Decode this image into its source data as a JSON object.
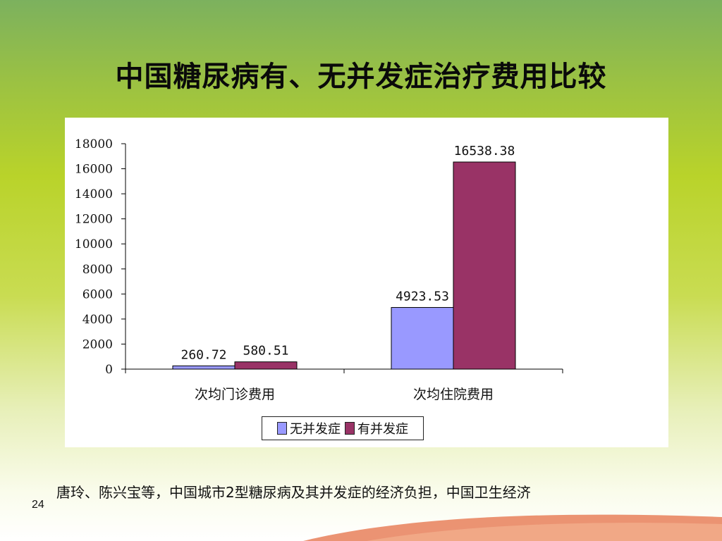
{
  "slide": {
    "title": "中国糖尿病有、无并发症治疗费用比较",
    "citation": "唐玲、陈兴宝等，中国城市2型糖尿病及其并发症的经济负担，中国卫生经济",
    "page_number": "24"
  },
  "colors": {
    "series_1": "#9999ff",
    "series_2": "#993366",
    "swoosh": "#e8805a"
  },
  "chart_data": {
    "type": "bar",
    "categories": [
      "次均门诊费用",
      "次均住院费用"
    ],
    "series": [
      {
        "name": "无并发症",
        "values": [
          260.72,
          4923.53
        ],
        "labels": [
          "260.72",
          "4923.53"
        ]
      },
      {
        "name": "有并发症",
        "values": [
          580.51,
          16538.38
        ],
        "labels": [
          "580.51",
          "16538.38"
        ]
      }
    ],
    "ylim": [
      0,
      18000
    ],
    "yticks": [
      0,
      2000,
      4000,
      6000,
      8000,
      10000,
      12000,
      14000,
      16000,
      18000
    ],
    "legend_position": "bottom",
    "grid": false
  }
}
